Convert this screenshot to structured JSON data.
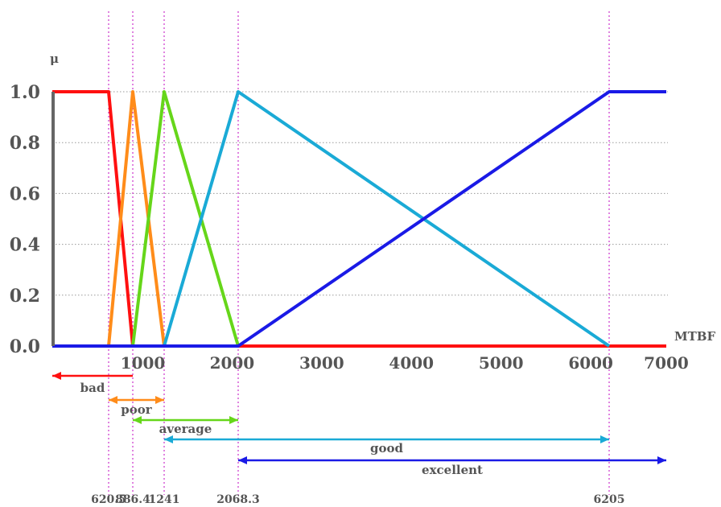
{
  "chart_data": {
    "type": "line",
    "title": "",
    "xlabel": "MTBF",
    "ylabel": "μ",
    "xlim": [
      0,
      7000
    ],
    "ylim": [
      0,
      1
    ],
    "xticks": [
      1000,
      2000,
      3000,
      4000,
      5000,
      6000,
      7000
    ],
    "yticks": [
      "0.0",
      "0.2",
      "0.4",
      "0.6",
      "0.8",
      "1.0"
    ],
    "grid": "horizontal dotted",
    "series": [
      {
        "color": "#ff1010",
        "points": [
          [
            0,
            1
          ],
          [
            620.5,
            1
          ],
          [
            886.4,
            0
          ],
          [
            7000,
            0
          ]
        ]
      },
      {
        "color": "#ff8c1a",
        "points": [
          [
            620.5,
            0
          ],
          [
            886.4,
            1
          ],
          [
            1241,
            0
          ]
        ]
      },
      {
        "color": "#66d61a",
        "points": [
          [
            886.4,
            0
          ],
          [
            1241,
            1
          ],
          [
            2068.3,
            0
          ]
        ]
      },
      {
        "color": "#1aaad6",
        "points": [
          [
            1241,
            0
          ],
          [
            2068.3,
            1
          ],
          [
            6205,
            0
          ]
        ]
      },
      {
        "color": "#1a1ae6",
        "points": [
          [
            0,
            0
          ],
          [
            2068.3,
            0
          ],
          [
            6205,
            1
          ],
          [
            7000,
            1
          ]
        ]
      }
    ],
    "markers": [
      "620.5",
      "886.4",
      "1241",
      "2068.3",
      "6205"
    ],
    "ranges": [
      {
        "label": "bad",
        "from": 0,
        "to": 886.4,
        "color": "#ff1010",
        "arrows": "left"
      },
      {
        "label": "poor",
        "from": 620.5,
        "to": 1241,
        "color": "#ff8c1a",
        "arrows": "both"
      },
      {
        "label": "average",
        "from": 886.4,
        "to": 2068.3,
        "color": "#66d61a",
        "arrows": "both"
      },
      {
        "label": "good",
        "from": 1241,
        "to": 6205,
        "color": "#1aaad6",
        "arrows": "both"
      },
      {
        "label": "excellent",
        "from": 2068.3,
        "to": 7000,
        "color": "#1a1ae6",
        "arrows": "both"
      }
    ]
  }
}
